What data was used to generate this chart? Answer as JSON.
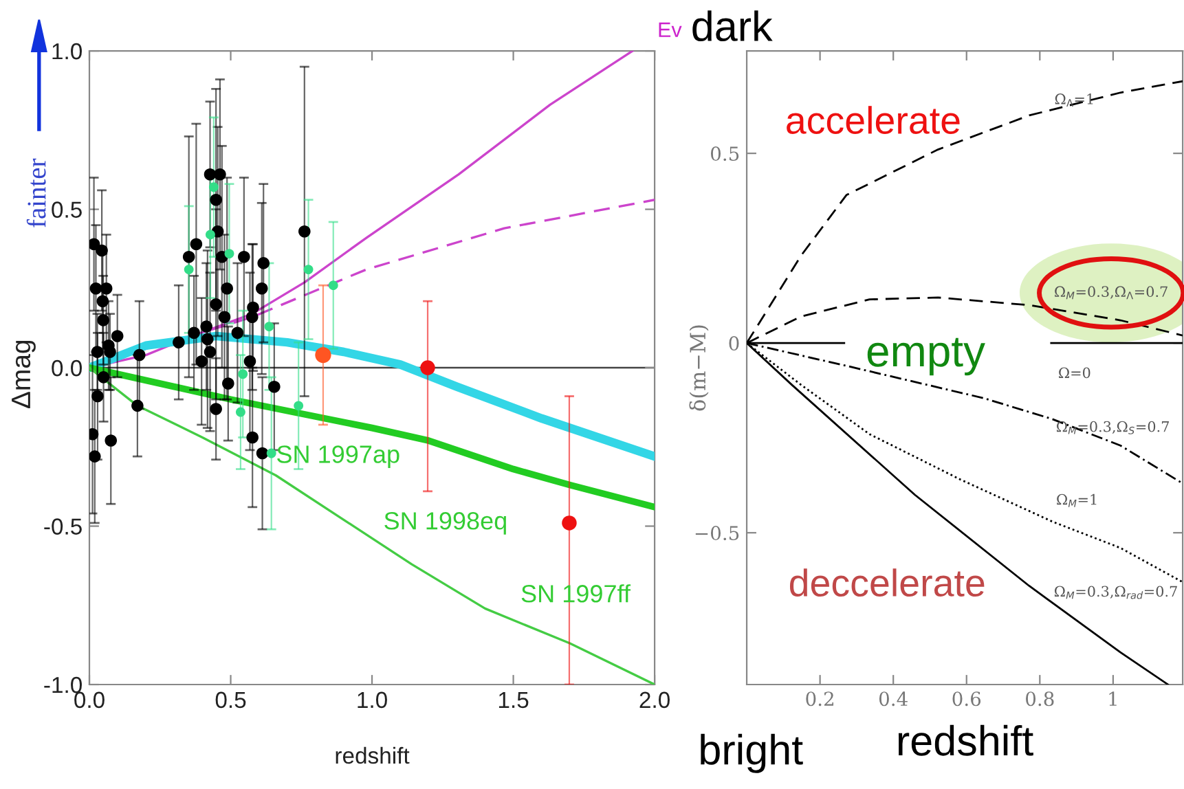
{
  "chart_data": [
    {
      "type": "scatter",
      "xlabel": "redshift",
      "ylabel": "Δmag",
      "xlim": [
        0,
        2
      ],
      "ylim": [
        -1,
        1
      ],
      "xticks": [
        {
          "value": 0,
          "label": "0.0"
        },
        0.5,
        {
          "value": 1,
          "label": "1.0"
        },
        1.5,
        {
          "value": 2,
          "label": "2.0"
        }
      ],
      "yticks": [
        {
          "value": -1,
          "label": "-1.0"
        },
        -0.5,
        {
          "value": 0,
          "label": "0.0"
        },
        0.5,
        {
          "value": 1,
          "label": "1.0"
        }
      ],
      "grid": false,
      "legend": false,
      "ref_lines": [
        {
          "axis": "y",
          "value": 0,
          "color": "#444444"
        }
      ],
      "series": [
        {
          "type": "scatter",
          "marker": "circle",
          "color": "#000000",
          "x": [
            0.016,
            0.023,
            0.044,
            0.047,
            0.06,
            0.049,
            0.028,
            0.068,
            0.073,
            0.099,
            0.05,
            0.177,
            0.316,
            0.352,
            0.37,
            0.378,
            0.397,
            0.414,
            0.418,
            0.427,
            0.427,
            0.462,
            0.448,
            0.454,
            0.448,
            0.469,
            0.478,
            0.487,
            0.491,
            0.524,
            0.547,
            0.568,
            0.576,
            0.579,
            0.61,
            0.616,
            0.654,
            0.761,
            0.029,
            0.011,
            0.019,
            0.076,
            0.17,
            0.448,
            0.577,
            0.612
          ],
          "values": [
            0.39,
            0.25,
            0.37,
            0.21,
            0.25,
            0.15,
            0.05,
            0.07,
            0.05,
            0.1,
            -0.03,
            0.04,
            0.08,
            0.35,
            0.11,
            0.39,
            0.02,
            0.13,
            0.09,
            0.05,
            0.61,
            0.61,
            0.53,
            0.43,
            0.2,
            0.35,
            0.16,
            0.25,
            -0.05,
            0.11,
            0.35,
            0.02,
            0.16,
            0.19,
            0.25,
            0.33,
            -0.06,
            0.43,
            -0.09,
            -0.21,
            -0.28,
            -0.23,
            -0.12,
            -0.13,
            -0.22,
            -0.27
          ],
          "errors": [
            0.21,
            0.2,
            0.19,
            0.15,
            0.17,
            0.14,
            0.12,
            0.14,
            0.12,
            0.13,
            0.14,
            0.17,
            0.18,
            0.38,
            0.18,
            0.38,
            0.2,
            0.2,
            0.28,
            0.25,
            0.23,
            0.3,
            0.35,
            0.33,
            0.3,
            0.35,
            0.26,
            0.35,
            0.18,
            0.22,
            0.25,
            0.28,
            0.23,
            0.2,
            0.27,
            0.25,
            0.2,
            0.52,
            0.2,
            0.25,
            0.21,
            0.2,
            0.16,
            0.16,
            0.22,
            0.24
          ]
        },
        {
          "type": "scatter",
          "marker": "circle",
          "color": "#33dd88",
          "x": [
            0.352,
            0.44,
            0.428,
            0.495,
            0.636,
            0.543,
            0.775,
            0.863,
            0.535,
            0.644,
            0.74
          ],
          "values": [
            0.31,
            0.57,
            0.42,
            0.36,
            0.13,
            -0.02,
            0.31,
            0.26,
            -0.14,
            -0.27,
            -0.12
          ],
          "errors": [
            0.2,
            0.22,
            0.2,
            0.22,
            0.2,
            0.2,
            0.22,
            0.2,
            0.18,
            0.24,
            0.2
          ]
        },
        {
          "type": "scatter",
          "marker": "circle",
          "color": "#ff5522",
          "x": [
            0.827
          ],
          "values": [
            0.04
          ],
          "errors": [
            0.22
          ]
        },
        {
          "type": "scatter",
          "marker": "circle",
          "color": "#ee1111",
          "x": [
            1.197,
            1.698
          ],
          "values": [
            0.0,
            -0.49
          ],
          "errors": [
            [
              -0.39,
              0.21
            ],
            [
              -1.0,
              -0.09
            ]
          ]
        },
        {
          "type": "line",
          "color": "#cc44cc",
          "line_style": "solid",
          "x": [
            0,
            0.2,
            0.365,
            0.576,
            0.762,
            0.98,
            1.306,
            1.63,
            1.922
          ],
          "values": [
            0,
            0.04,
            0.1,
            0.17,
            0.27,
            0.41,
            0.61,
            0.83,
            1.0
          ]
        },
        {
          "type": "line",
          "color": "#cc44cc",
          "line_style": "dashed",
          "x": [
            0,
            0.2,
            0.36,
            0.576,
            0.98,
            1.468,
            2.0
          ],
          "values": [
            0,
            0.06,
            0.1,
            0.16,
            0.31,
            0.44,
            0.53
          ]
        },
        {
          "type": "line",
          "color": "#33d6e6",
          "line_style": "solid",
          "x": [
            0,
            0.2,
            0.45,
            0.7,
            0.9,
            1.1,
            1.3,
            1.6,
            2.0
          ],
          "values": [
            0,
            0.07,
            0.1,
            0.08,
            0.05,
            0.01,
            -0.06,
            -0.16,
            -0.28
          ]
        },
        {
          "type": "line",
          "color": "#22cc22",
          "line_style": "solid",
          "x": [
            0,
            0.5,
            1.0,
            1.2,
            1.5,
            1.7,
            2.0
          ],
          "values": [
            0,
            -0.1,
            -0.19,
            -0.23,
            -0.32,
            -0.37,
            -0.44
          ]
        },
        {
          "type": "line",
          "color": "#44cc44",
          "line_style": "solid",
          "x": [
            0,
            0.17,
            0.4,
            0.66,
            0.9,
            1.14,
            1.4,
            1.7,
            2.0
          ],
          "values": [
            0,
            -0.12,
            -0.22,
            -0.34,
            -0.48,
            -0.62,
            -0.76,
            -0.87,
            -1.0
          ]
        }
      ],
      "annotations": [
        "SN 1997ap",
        "SN 1998eq",
        "SN 1997ff",
        "fainter",
        "Ev"
      ]
    },
    {
      "type": "line",
      "xlabel": "redshift",
      "ylabel": "δ(m−M)",
      "xlim": [
        0,
        1.19
      ],
      "ylim": [
        -0.9,
        0.77
      ],
      "xticks": [
        0.2,
        0.4,
        0.6,
        0.8,
        1
      ],
      "yticks": [
        {
          "value": -0.5,
          "label": "−0.5"
        },
        0,
        0.5
      ],
      "grid": false,
      "legend": false,
      "series": [
        {
          "color": "#000000",
          "line_style": "dashed",
          "x": [
            0,
            0.148,
            0.272,
            0.522,
            0.771,
            1.02,
            1.19
          ],
          "values": [
            0,
            0.23,
            0.39,
            0.51,
            0.6,
            0.66,
            0.69
          ]
        },
        {
          "color": "#000000",
          "line_style": "dashed",
          "x": [
            0,
            0.148,
            0.335,
            0.522,
            0.771,
            1.02,
            1.19
          ],
          "values": [
            0,
            0.07,
            0.115,
            0.12,
            0.1,
            0.06,
            0.02
          ]
        },
        {
          "color": "#000000",
          "line_style": "solid",
          "x": [
            0,
            0.266,
            0.5,
            0.831,
            1.19
          ],
          "values": [
            0,
            0,
            null,
            0,
            0
          ]
        },
        {
          "color": "#000000",
          "line_style": "dashdot",
          "x": [
            0,
            0.272,
            0.646,
            0.833,
            1.02,
            1.19
          ],
          "values": [
            0,
            -0.06,
            -0.145,
            -0.2,
            -0.27,
            -0.37
          ]
        },
        {
          "color": "#000000",
          "line_style": "dotted",
          "x": [
            0,
            0.148,
            0.335,
            0.584,
            0.833,
            1.02,
            1.19
          ],
          "values": [
            0,
            -0.11,
            -0.24,
            -0.36,
            -0.47,
            -0.54,
            -0.63
          ]
        },
        {
          "color": "#000000",
          "line_style": "solid",
          "x": [
            0,
            0.123,
            0.459,
            0.771,
            1.02,
            1.15
          ],
          "values": [
            0,
            -0.11,
            -0.4,
            -0.64,
            -0.815,
            -0.9
          ]
        }
      ],
      "annotations": [
        "Ω$_{Λ}$=1",
        "Ω$_{M}$=0.3,Ω$_{Λ}$=0.7",
        "Ω=0",
        "Ω$_{M}$=0.3,Ω$_{S}$=0.7",
        "Ω$_{M}$=1",
        "Ω$_{M}$=0.3,Ω$_{rad}$=0.7",
        "accelerate",
        "empty",
        "deccelerate",
        "dark",
        "bright"
      ]
    }
  ]
}
